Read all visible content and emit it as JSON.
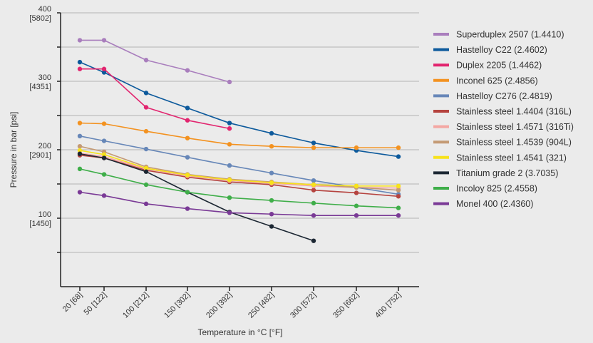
{
  "chart_data": {
    "type": "line",
    "title": "",
    "xlabel": "Temperature in °C [°F]",
    "ylabel": "Pressure in bar [psi]",
    "x": [
      20,
      50,
      100,
      150,
      200,
      250,
      300,
      350,
      400
    ],
    "x_tick_labels": [
      "20 [68]",
      "50 [122]",
      "100 [212]",
      "150 [302]",
      "200 [392]",
      "250 [482]",
      "300 [572]",
      "350 [662]",
      "400 [752]"
    ],
    "y_ticks": [
      {
        "value": 400,
        "label": "400",
        "sublabel": "[5802]"
      },
      {
        "value": 300,
        "label": "300",
        "sublabel": "[4351]"
      },
      {
        "value": 200,
        "label": "200",
        "sublabel": "[2901]"
      },
      {
        "value": 100,
        "label": "100",
        "sublabel": "[1450]"
      }
    ],
    "y_minor_ticks": [
      350,
      250,
      150,
      50
    ],
    "ylim": [
      0,
      400
    ],
    "xlim": [
      20,
      400
    ],
    "grid": true,
    "legend_position": "right",
    "series": [
      {
        "name": "Superduplex 2507 (1.4410)",
        "color": "#a97ebd",
        "x": [
          20,
          50,
          100,
          150,
          200
        ],
        "values": [
          360,
          360,
          331,
          316,
          299
        ]
      },
      {
        "name": "Hastelloy C22 (2.4602)",
        "color": "#0d5a9c",
        "x": [
          20,
          50,
          100,
          150,
          200,
          250,
          300,
          350,
          400
        ],
        "values": [
          328,
          313,
          283,
          261,
          239,
          224,
          210,
          199,
          190
        ]
      },
      {
        "name": "Duplex 2205 (1.4462)",
        "color": "#e2256f",
        "x": [
          20,
          50,
          100,
          150,
          200
        ],
        "values": [
          318,
          318,
          262,
          243,
          231
        ]
      },
      {
        "name": "Inconel 625 (2.4856)",
        "color": "#f39220",
        "x": [
          20,
          50,
          100,
          150,
          200,
          250,
          300,
          350,
          400
        ],
        "values": [
          239,
          238,
          227,
          217,
          208,
          205,
          203,
          203,
          203
        ]
      },
      {
        "name": "Hastelloy C276 (2.4819)",
        "color": "#6787b8",
        "x": [
          20,
          50,
          100,
          150,
          200,
          250,
          300,
          350,
          400
        ],
        "values": [
          220,
          213,
          201,
          189,
          177,
          166,
          155,
          145,
          135
        ]
      },
      {
        "name": "Stainless steel 1.4404 (316L)",
        "color": "#b5433f",
        "x": [
          20,
          50,
          100,
          150,
          200,
          250,
          300,
          350,
          400
        ],
        "values": [
          192,
          188,
          170,
          160,
          153,
          149,
          141,
          137,
          132
        ]
      },
      {
        "name": "Stainless steel 1.4571 (316Ti)",
        "color": "#f4a7a3",
        "x": [
          20,
          50,
          100,
          150,
          200,
          250,
          300,
          350,
          400
        ],
        "values": [
          195,
          190,
          172,
          162,
          155,
          151,
          147,
          145,
          144
        ]
      },
      {
        "name": "Stainless steel 1.4539 (904L)",
        "color": "#c49a74",
        "x": [
          20,
          50,
          100,
          150,
          200,
          250,
          300,
          350,
          400
        ],
        "values": [
          205,
          197,
          175,
          164,
          157,
          153,
          149,
          145,
          141
        ]
      },
      {
        "name": "Stainless steel 1.4541 (321)",
        "color": "#f7e21b",
        "x": [
          20,
          50,
          100,
          150,
          200,
          250,
          300,
          350,
          400
        ],
        "values": [
          199,
          193,
          173,
          163,
          156,
          152,
          149,
          147,
          147
        ]
      },
      {
        "name": "Titanium grade 2 (3.7035)",
        "color": "#1c2733",
        "x": [
          20,
          50,
          100,
          150,
          200,
          250,
          300
        ],
        "values": [
          194,
          188,
          168,
          138,
          109,
          88,
          67
        ]
      },
      {
        "name": "Incoloy 825 (2.4558)",
        "color": "#3fae49",
        "x": [
          20,
          50,
          100,
          150,
          200,
          250,
          300,
          350,
          400
        ],
        "values": [
          172,
          164,
          149,
          138,
          130,
          126,
          122,
          118,
          115
        ]
      },
      {
        "name": "Monel 400 (2.4360)",
        "color": "#7a3a96",
        "x": [
          20,
          50,
          100,
          150,
          200,
          250,
          300,
          350,
          400
        ],
        "values": [
          138,
          133,
          121,
          114,
          108,
          106,
          104,
          104,
          104
        ]
      }
    ]
  }
}
